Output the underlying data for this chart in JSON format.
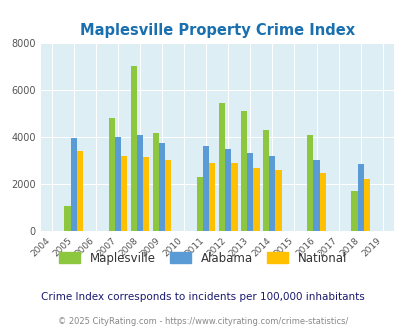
{
  "title": "Maplesville Property Crime Index",
  "title_color": "#1a6faf",
  "subtitle": "Crime Index corresponds to incidents per 100,000 inhabitants",
  "footer": "© 2025 CityRating.com - https://www.cityrating.com/crime-statistics/",
  "years": [
    2005,
    2007,
    2008,
    2009,
    2011,
    2012,
    2013,
    2014,
    2016,
    2018
  ],
  "maplesville": [
    1050,
    4800,
    7000,
    4150,
    2300,
    5450,
    5100,
    4300,
    4100,
    1700
  ],
  "alabama": [
    3950,
    4000,
    4100,
    3750,
    3600,
    3500,
    3300,
    3200,
    3000,
    2850
  ],
  "national": [
    3400,
    3200,
    3150,
    3000,
    2900,
    2900,
    2700,
    2600,
    2450,
    2200
  ],
  "maplesville_color": "#8dc63f",
  "alabama_color": "#5b9bd5",
  "national_color": "#ffc000",
  "bg_color": "#ddeef5",
  "ylim": [
    0,
    8000
  ],
  "yticks": [
    0,
    2000,
    4000,
    6000,
    8000
  ],
  "all_years": [
    2004,
    2005,
    2006,
    2007,
    2008,
    2009,
    2010,
    2011,
    2012,
    2013,
    2014,
    2015,
    2016,
    2017,
    2018,
    2019
  ],
  "bar_width": 0.28,
  "subtitle_color": "#1a1a6e",
  "footer_color": "#888888",
  "footer_link_color": "#4488cc",
  "grid_color": "#ffffff"
}
